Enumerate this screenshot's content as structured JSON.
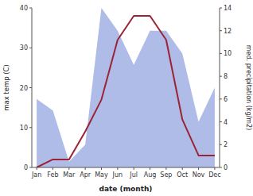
{
  "chart_data": {
    "type": "line",
    "xlabel": "date (month)",
    "ylabel": "max temp (C)",
    "y2label": "med. precipitation (kg/m2)",
    "categories": [
      "Jan",
      "Feb",
      "Mar",
      "Apr",
      "May",
      "Jun",
      "Jul",
      "Aug",
      "Sep",
      "Oct",
      "Nov",
      "Dec"
    ],
    "series": [
      {
        "type": "area",
        "axis": "y2",
        "color": "#b0bce8",
        "values": [
          6,
          5,
          0.5,
          2,
          14,
          12,
          9,
          12,
          12,
          10,
          4,
          7
        ]
      },
      {
        "type": "line",
        "color": "#9b2335",
        "values": [
          0,
          2,
          2,
          9,
          17,
          32,
          38,
          38,
          32,
          12,
          3,
          3
        ]
      }
    ],
    "ylim": [
      0,
      40
    ],
    "yticks": [
      0,
      10,
      20,
      30,
      40
    ],
    "y2lim": [
      0,
      14
    ],
    "y2ticks": [
      0,
      2,
      4,
      6,
      8,
      10,
      12,
      14
    ],
    "grid": false
  }
}
